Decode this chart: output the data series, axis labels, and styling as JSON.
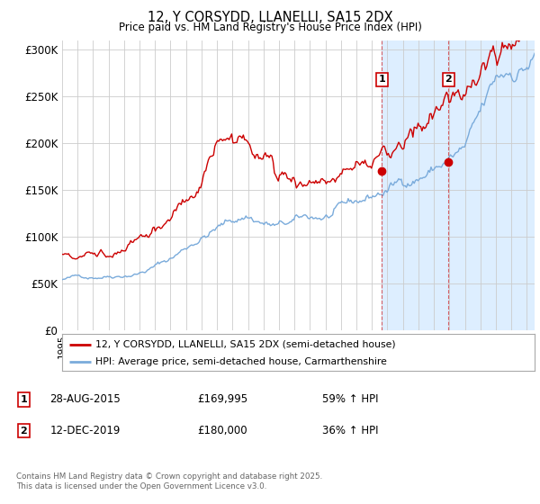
{
  "title": "12, Y CORSYDD, LLANELLI, SA15 2DX",
  "subtitle": "Price paid vs. HM Land Registry's House Price Index (HPI)",
  "ylabel_ticks": [
    "£0",
    "£50K",
    "£100K",
    "£150K",
    "£200K",
    "£250K",
    "£300K"
  ],
  "ytick_vals": [
    0,
    50000,
    100000,
    150000,
    200000,
    250000,
    300000
  ],
  "ylim": [
    0,
    310000
  ],
  "xlim_start": 1995.0,
  "xlim_end": 2025.5,
  "sale1_date": 2015.65,
  "sale1_price": 169995,
  "sale2_date": 2019.95,
  "sale2_price": 180000,
  "legend_line1": "12, Y CORSYDD, LLANELLI, SA15 2DX (semi-detached house)",
  "legend_line2": "HPI: Average price, semi-detached house, Carmarthenshire",
  "footer": "Contains HM Land Registry data © Crown copyright and database right 2025.\nThis data is licensed under the Open Government Licence v3.0.",
  "red_color": "#cc0000",
  "blue_color": "#7aabdb",
  "shade_color": "#ddeeff",
  "bg_color": "#ffffff",
  "grid_color": "#cccccc"
}
